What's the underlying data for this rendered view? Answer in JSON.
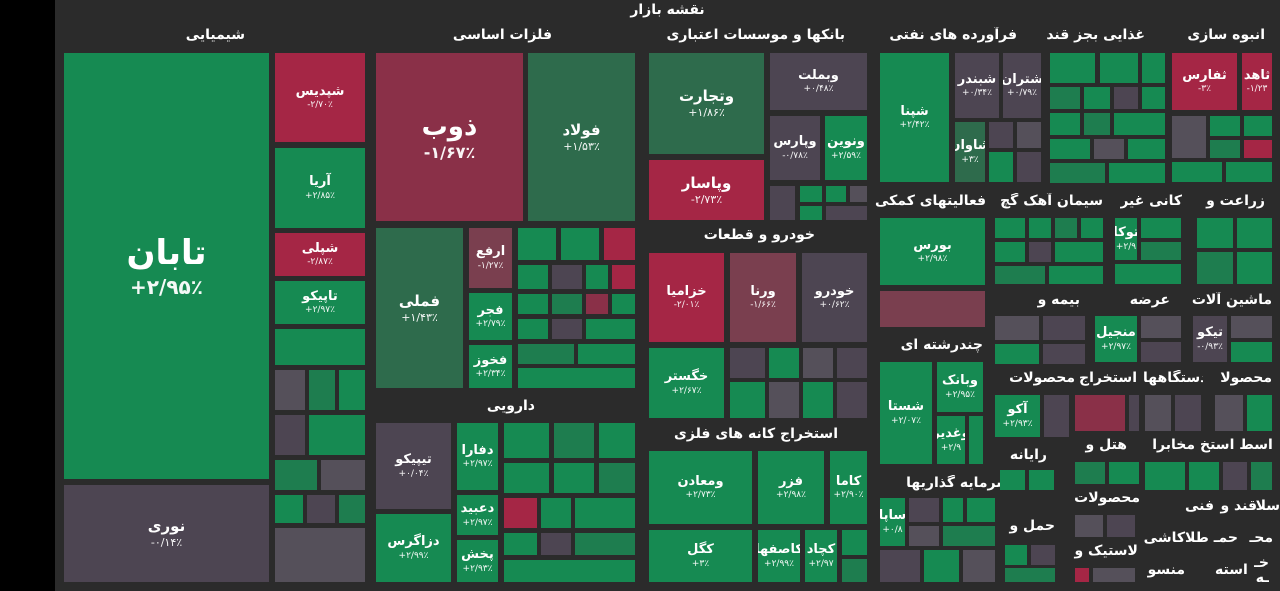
{
  "title": "نقشه بازار",
  "sectors": {
    "chemicals": "شیمیایی",
    "metals": "فلزات اساسی",
    "banks": "بانکها و موسسات اعتباری",
    "oil": "فرآورده های نفتی",
    "sugar": "غذایی بجز قند",
    "mass": "انبوه سازی",
    "auto": "خودرو و قطعات",
    "pharma": "دارویی",
    "mining": "استخراج کانه های فلزی",
    "support": "فعالیتهای کمکی",
    "cement": "سیمان آهک گچ",
    "nonmetal": "کانی غیر",
    "agri": "زراعت و",
    "insurance": "بیمه و",
    "offer": "عرضه",
    "machinery": "ماشین آلات",
    "multi": "چندرشته ای",
    "products": "محصولات",
    "extract": "استخراج",
    "devices": "دستگاهها",
    "products2": "محصولا",
    "software": "رایانه",
    "hotel": "هتل و",
    "wastakh": "واسط استخ",
    "mokhabera": "مخابرا",
    "investment": "سرمایه گذاریها",
    "products3": "محصولات",
    "transport": "حمل و",
    "plastic": "لاستیک و",
    "tile": "کاشی",
    "textile": "منسو",
    "fanni": "فنی",
    "ghand": "قند و",
    "sala": "سلا",
    "mahsa": "محـ",
    "hama": "حمـ",
    "atla": "اطلا",
    "kha": "خـ",
    "esteh": "استه",
    "ha": "ـه"
  },
  "tiles": {
    "taban": {
      "name": "تابان",
      "pct": "+۲/۹۵٪"
    },
    "noori": {
      "name": "نوری",
      "pct": "-۰/۱۴٪"
    },
    "shpdis": {
      "name": "شپدیس",
      "pct": "-۲/۷۰٪"
    },
    "arya": {
      "name": "آریا",
      "pct": "+۲/۸۵٪"
    },
    "shepli": {
      "name": "شپلی",
      "pct": "-۲/۸۷٪"
    },
    "tapiko": {
      "name": "تاپیکو",
      "pct": "+۲/۹۷٪"
    },
    "zob": {
      "name": "ذوب",
      "pct": "-۱/۶۷٪"
    },
    "foolad": {
      "name": "فولاد",
      "pct": "+۱/۵۳٪"
    },
    "fameli": {
      "name": "فملی",
      "pct": "+۱/۴۳٪"
    },
    "arfa": {
      "name": "ارفع",
      "pct": "-۱/۲۷٪"
    },
    "fajr": {
      "name": "فجر",
      "pct": "+۲/۷۹٪"
    },
    "fkhooz": {
      "name": "فخوز",
      "pct": "+۲/۳۴٪"
    },
    "vtejarat": {
      "name": "وتجارت",
      "pct": "+۱/۸۶٪"
    },
    "vbemellat": {
      "name": "وبملت",
      "pct": "+۰/۴۸٪"
    },
    "vpars": {
      "name": "وپارس",
      "pct": "-۰/۷۸٪"
    },
    "vnovin": {
      "name": "ونوین",
      "pct": "+۲/۵۹٪"
    },
    "vpasar": {
      "name": "وپاسار",
      "pct": "-۲/۷۳٪"
    },
    "shpna": {
      "name": "شپنا",
      "pct": "+۲/۴۲٪"
    },
    "shbandar": {
      "name": "شبندر",
      "pct": "+۰/۳۴٪"
    },
    "shtran": {
      "name": "شتران",
      "pct": "+۰/۷۹٪"
    },
    "shavan": {
      "name": "شاوان",
      "pct": "+۳٪"
    },
    "sfars": {
      "name": "ثفارس",
      "pct": "-۳٪"
    },
    "saahed": {
      "name": "ثاهد",
      "pct": "-۱/۲۳"
    },
    "khzamia": {
      "name": "خزامیا",
      "pct": "-۲/۰۱٪"
    },
    "varena": {
      "name": "ورنا",
      "pct": "-۱/۶۶٪"
    },
    "khodro": {
      "name": "خودرو",
      "pct": "+۰/۶۲٪"
    },
    "khgostar": {
      "name": "خگستر",
      "pct": "+۲/۶۷٪"
    },
    "tipiko": {
      "name": "تیپیکو",
      "pct": "+۰/۰۴٪"
    },
    "dfara": {
      "name": "دفارا",
      "pct": "+۲/۹۷٪"
    },
    "dabid": {
      "name": "دعبید",
      "pct": "+۲/۹۷٪"
    },
    "dzagros": {
      "name": "دزاگرس",
      "pct": "+۲/۹۹٪"
    },
    "pakhsh": {
      "name": "پخش",
      "pct": "+۲/۹۳٪"
    },
    "vmaaden": {
      "name": "ومعادن",
      "pct": "+۲/۷۳٪"
    },
    "fazar": {
      "name": "فزر",
      "pct": "+۲/۹۸٪"
    },
    "kama": {
      "name": "کاما",
      "pct": "+۲/۹۰٪"
    },
    "kgol": {
      "name": "کگل",
      "pct": "+۳٪"
    },
    "kesfaho": {
      "name": "کاصفها",
      "pct": "+۲/۹۹٪"
    },
    "kchad": {
      "name": "کچاد",
      "pct": "+۲/۹۷"
    },
    "boors": {
      "name": "بورس",
      "pct": "+۲/۹۸٪"
    },
    "toka": {
      "name": "توکا",
      "pct": "+۲/۹"
    },
    "manjil": {
      "name": "منجیل",
      "pct": "+۲/۹۷٪"
    },
    "tiko": {
      "name": "تیکو",
      "pct": "-۰/۹۳٪"
    },
    "shasta": {
      "name": "شستا",
      "pct": "+۲/۰۷٪"
    },
    "vbank": {
      "name": "وبانک",
      "pct": "+۲/۹۵٪"
    },
    "ghadir": {
      "name": "وغدیر",
      "pct": "+۲/۹"
    },
    "ako": {
      "name": "آکو",
      "pct": "+۲/۹۳٪"
    },
    "sapa": {
      "name": "ساپا",
      "pct": "+۰/۸"
    }
  }
}
